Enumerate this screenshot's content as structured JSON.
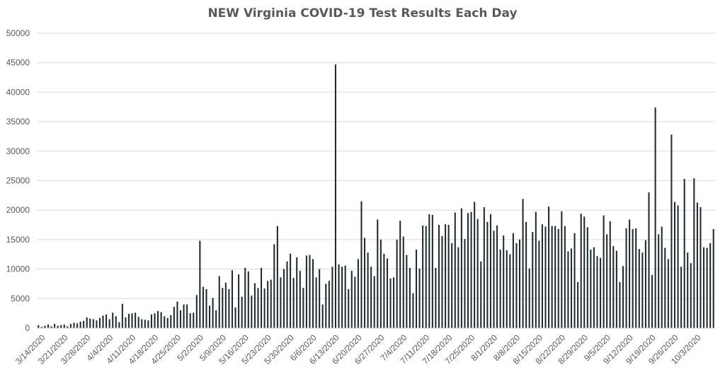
{
  "chart_data": {
    "type": "bar",
    "title": "NEW Virginia COVID-19 Test Results Each Day",
    "xlabel": "",
    "ylabel": "",
    "ylim": [
      0,
      50000
    ],
    "yticks": [
      0,
      5000,
      10000,
      15000,
      20000,
      25000,
      30000,
      35000,
      40000,
      45000,
      50000
    ],
    "ytick_labels": [
      "0",
      "5000",
      "10000",
      "15000",
      "20000",
      "25000",
      "30000",
      "35000",
      "40000",
      "45000",
      "50000"
    ],
    "x_tick_labels": [
      "3/14/2020",
      "3/21/2020",
      "3/28/2020",
      "4/4/2020",
      "4/11/2020",
      "4/18/2020",
      "4/25/2020",
      "5/2/2020",
      "5/9/2020",
      "5/16/2020",
      "5/23/2020",
      "5/30/2020",
      "6/6/2020",
      "6/13/2020",
      "6/20/2020",
      "6/27/2020",
      "7/4/2020",
      "7/11/2020",
      "7/18/2020",
      "7/25/2020",
      "8/1/2020",
      "8/8/2020",
      "8/15/2020",
      "8/22/2020",
      "8/29/2020",
      "9/5/2020",
      "9/12/2020",
      "9/19/2020",
      "9/26/2020",
      "10/3/2020"
    ],
    "grid": true,
    "legend": "none",
    "bar_color": "#1f2a30",
    "values": [
      500,
      200,
      400,
      600,
      300,
      700,
      400,
      500,
      600,
      300,
      700,
      900,
      800,
      1100,
      1200,
      1800,
      1600,
      1500,
      1300,
      1700,
      2100,
      2300,
      1500,
      2600,
      2000,
      1000,
      4100,
      1800,
      2400,
      2500,
      2600,
      1900,
      1500,
      1400,
      1300,
      2300,
      2500,
      2900,
      2700,
      2000,
      1700,
      2200,
      3600,
      4500,
      3000,
      4000,
      4000,
      2500,
      2600,
      5600,
      14800,
      7000,
      6600,
      3800,
      5100,
      3000,
      8800,
      6800,
      7700,
      6600,
      9800,
      3500,
      9100,
      5300,
      10200,
      9600,
      5500,
      7600,
      6800,
      10200,
      6700,
      8000,
      8200,
      14200,
      17300,
      8600,
      10000,
      11300,
      12600,
      8500,
      12000,
      9700,
      6800,
      12300,
      12400,
      11700,
      8600,
      10000,
      4000,
      7500,
      8000,
      10400,
      44700,
      10800,
      10400,
      10600,
      6600,
      9700,
      8700,
      11700,
      21500,
      15300,
      12800,
      10400,
      8800,
      18400,
      15000,
      12600,
      11800,
      8400,
      8600,
      15000,
      18200,
      15500,
      12400,
      10200,
      5900,
      13300,
      10100,
      17400,
      17300,
      19300,
      19200,
      10200,
      17500,
      15600,
      17600,
      17500,
      14400,
      19600,
      13700,
      20300,
      15100,
      19500,
      19700,
      21400,
      18500,
      11300,
      20500,
      18000,
      19300,
      16500,
      17400,
      13300,
      15700,
      13200,
      12500,
      16100,
      14400,
      15000,
      21900,
      18000,
      10100,
      16300,
      19700,
      14800,
      17600,
      17200,
      20600,
      17300,
      17300,
      16800,
      19800,
      17300,
      13000,
      13500,
      16100,
      7800,
      19400,
      18900,
      17100,
      13300,
      13700,
      12200,
      11900,
      19100,
      15900,
      18100,
      13900,
      13100,
      7800,
      10500,
      16900,
      18400,
      16800,
      16900,
      13400,
      12800,
      14900,
      23000,
      9000,
      37400,
      15900,
      17200,
      13600,
      11700,
      32800,
      21400,
      20800,
      10400,
      25300,
      12800,
      11000,
      25400,
      21300,
      20500,
      13700,
      13600,
      14400,
      16800
    ]
  }
}
